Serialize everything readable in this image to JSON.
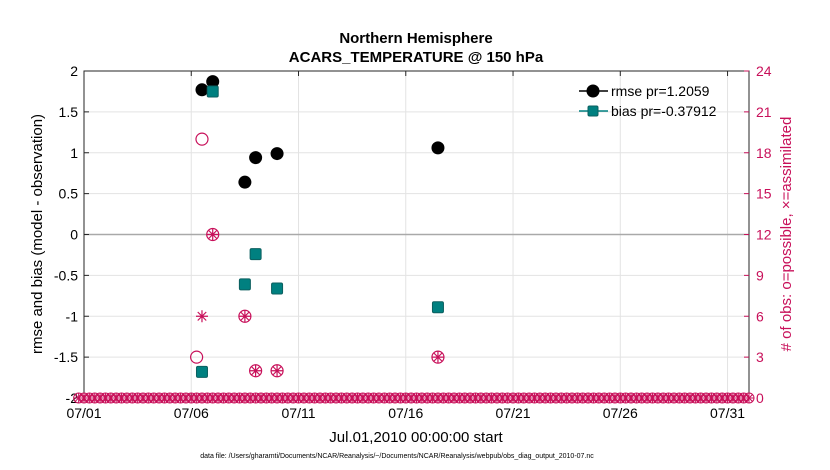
{
  "chart_data": {
    "type": "scatter",
    "title": [
      "Northern Hemisphere",
      "ACARS_TEMPERATURE @ 150 hPa"
    ],
    "xlabel": "Jul.01,2010 00:00:00 start",
    "ylabel": "rmse and bias (model - observation)",
    "y2label": "# of obs: o=possible, ×=assimilated",
    "xlim": [
      1,
      32
    ],
    "ylim": [
      -2,
      2
    ],
    "y2lim": [
      0,
      24
    ],
    "x_ticks": [
      {
        "value": 1,
        "label": "07/01"
      },
      {
        "value": 6,
        "label": "07/06"
      },
      {
        "value": 11,
        "label": "07/11"
      },
      {
        "value": 16,
        "label": "07/16"
      },
      {
        "value": 21,
        "label": "07/21"
      },
      {
        "value": 26,
        "label": "07/26"
      },
      {
        "value": 31,
        "label": "07/31"
      }
    ],
    "y_ticks": [
      {
        "value": 2,
        "label": "2"
      },
      {
        "value": 1.5,
        "label": "1.5"
      },
      {
        "value": 1,
        "label": "1"
      },
      {
        "value": 0.5,
        "label": "0.5"
      },
      {
        "value": 0,
        "label": "0"
      },
      {
        "value": -0.5,
        "label": "-0.5"
      },
      {
        "value": -1,
        "label": "-1"
      },
      {
        "value": -1.5,
        "label": "-1.5"
      },
      {
        "value": -2,
        "label": "-2"
      }
    ],
    "y2_ticks": [
      {
        "value": 24,
        "label": "24"
      },
      {
        "value": 21,
        "label": "21"
      },
      {
        "value": 18,
        "label": "18"
      },
      {
        "value": 15,
        "label": "15"
      },
      {
        "value": 12,
        "label": "12"
      },
      {
        "value": 9,
        "label": "9"
      },
      {
        "value": 6,
        "label": "6"
      },
      {
        "value": 3,
        "label": "3"
      },
      {
        "value": 0,
        "label": "0"
      }
    ],
    "grid": true,
    "legend_position": "top-right",
    "series": [
      {
        "name": "rmse pr=1.2059",
        "color": "#000000",
        "marker": "circle",
        "points": [
          {
            "x": 6.5,
            "y": 1.77
          },
          {
            "x": 7.0,
            "y": 1.87
          },
          {
            "x": 8.5,
            "y": 0.64
          },
          {
            "x": 9.0,
            "y": 0.94
          },
          {
            "x": 10.0,
            "y": 0.99
          },
          {
            "x": 17.5,
            "y": 1.06
          }
        ]
      },
      {
        "name": "bias pr=-0.37912",
        "color": "#008080",
        "marker": "square",
        "points": [
          {
            "x": 6.5,
            "y": -1.68
          },
          {
            "x": 7.0,
            "y": 1.75
          },
          {
            "x": 8.5,
            "y": -0.61
          },
          {
            "x": 9.0,
            "y": -0.24
          },
          {
            "x": 10.0,
            "y": -0.66
          },
          {
            "x": 17.5,
            "y": -0.89
          }
        ]
      }
    ],
    "obs_possible": {
      "color": "#c8105a",
      "marker": "o",
      "points": [
        {
          "x": 6.25,
          "y": 3
        },
        {
          "x": 6.5,
          "y": 19
        },
        {
          "x": 7.0,
          "y": 12
        },
        {
          "x": 8.5,
          "y": 6
        },
        {
          "x": 9.0,
          "y": 2
        },
        {
          "x": 10.0,
          "y": 2
        },
        {
          "x": 17.5,
          "y": 3
        }
      ]
    },
    "obs_assimilated": {
      "color": "#c8105a",
      "marker": "*",
      "points": [
        {
          "x": 6.5,
          "y": 6
        },
        {
          "x": 7.0,
          "y": 12
        },
        {
          "x": 8.5,
          "y": 6
        },
        {
          "x": 9.0,
          "y": 2
        },
        {
          "x": 10.0,
          "y": 2
        },
        {
          "x": 17.5,
          "y": 3
        }
      ]
    },
    "baseline_markers": {
      "y2": 0,
      "x_start": 0.75,
      "x_end": 32.0,
      "step": 0.25
    }
  },
  "footer": "data file: /Users/gharamti/Documents/NCAR/Reanalysis/~/Documents/NCAR/Reanalysis/webpub/obs_diag_output_2010-07.nc",
  "colors": {
    "right_axis": "#c8105a",
    "bias": "#008080",
    "rmse": "#000000"
  }
}
